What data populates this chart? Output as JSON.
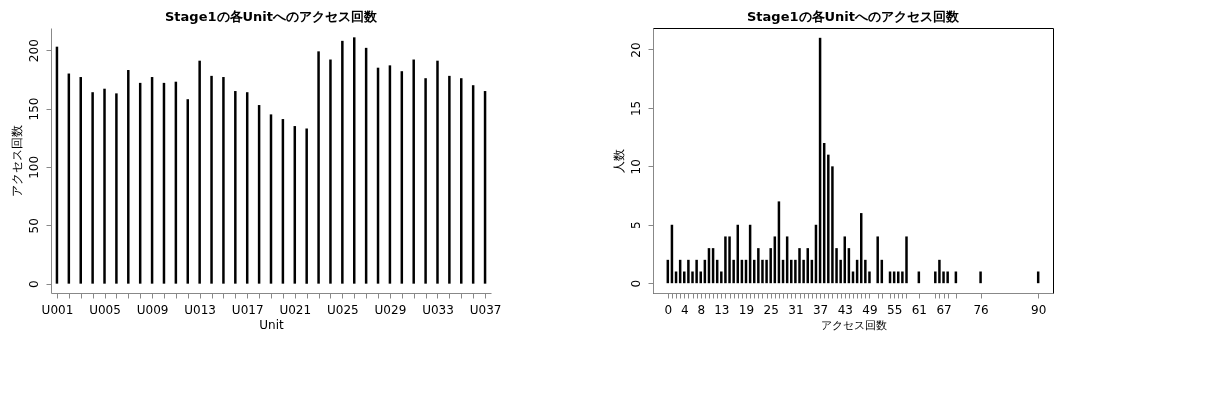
{
  "chart_data": [
    {
      "type": "bar",
      "title": "Stage1の各Unitへのアクセス回数",
      "xlabel": "Unit",
      "ylabel": "アクセス回数",
      "categories": [
        "U001",
        null,
        null,
        null,
        "U005",
        null,
        null,
        null,
        "U009",
        null,
        null,
        null,
        "U013",
        null,
        null,
        null,
        "U017",
        null,
        null,
        null,
        "U021",
        null,
        null,
        null,
        "U025",
        null,
        null,
        null,
        "U029",
        null,
        null,
        null,
        "U033",
        null,
        null,
        null,
        "U037"
      ],
      "values": [
        203,
        180,
        177,
        164,
        167,
        163,
        183,
        172,
        177,
        172,
        173,
        158,
        191,
        178,
        177,
        165,
        164,
        153,
        145,
        141,
        135,
        133,
        199,
        192,
        208,
        211,
        202,
        185,
        187,
        182,
        192,
        176,
        191,
        178,
        176,
        170,
        165
      ],
      "color": "#000000",
      "ylim": [
        -8,
        219
      ],
      "yticks": [
        0,
        50,
        100,
        150,
        200
      ],
      "grid": false
    },
    {
      "type": "bar",
      "title": "Stage1の各Unitへのアクセス回数",
      "xlabel": "アクセス回数",
      "ylabel": "人数",
      "x": [
        0,
        1,
        2,
        3,
        4,
        5,
        6,
        7,
        8,
        9,
        10,
        11,
        12,
        13,
        14,
        15,
        16,
        17,
        18,
        19,
        20,
        21,
        22,
        23,
        24,
        25,
        26,
        27,
        28,
        29,
        30,
        31,
        32,
        33,
        34,
        35,
        36,
        37,
        38,
        39,
        40,
        41,
        42,
        43,
        44,
        45,
        46,
        47,
        48,
        49,
        51,
        52,
        54,
        55,
        56,
        57,
        58,
        61,
        65,
        66,
        67,
        68,
        70,
        76,
        90
      ],
      "values": [
        2,
        5,
        1,
        2,
        1,
        2,
        1,
        2,
        1,
        2,
        3,
        3,
        2,
        1,
        4,
        4,
        2,
        5,
        2,
        2,
        5,
        2,
        3,
        2,
        2,
        3,
        4,
        7,
        2,
        4,
        2,
        2,
        3,
        2,
        3,
        2,
        5,
        21,
        12,
        11,
        10,
        3,
        2,
        4,
        3,
        1,
        2,
        6,
        2,
        1,
        4,
        2,
        1,
        1,
        1,
        1,
        4,
        1,
        1,
        2,
        1,
        1,
        1,
        1,
        1
      ],
      "color": "#000000",
      "xlim": [
        -3.6,
        93.6
      ],
      "ylim": [
        -0.84,
        21.84
      ],
      "yticks": [
        0,
        5,
        10,
        15,
        20
      ],
      "xticks": [
        0,
        {
          "value": 1,
          "label": null
        },
        {
          "value": 2,
          "label": null
        },
        {
          "value": 3,
          "label": null
        },
        4,
        {
          "value": 5,
          "label": null
        },
        {
          "value": 6,
          "label": null
        },
        {
          "value": 7,
          "label": null
        },
        8,
        {
          "value": 9,
          "label": null
        },
        {
          "value": 10,
          "label": null
        },
        {
          "value": 11,
          "label": null
        },
        {
          "value": 12,
          "label": null
        },
        13,
        {
          "value": 14,
          "label": null
        },
        {
          "value": 15,
          "label": null
        },
        {
          "value": 16,
          "label": null
        },
        {
          "value": 17,
          "label": null
        },
        {
          "value": 18,
          "label": null
        },
        19,
        {
          "value": 20,
          "label": null
        },
        {
          "value": 21,
          "label": null
        },
        {
          "value": 22,
          "label": null
        },
        {
          "value": 23,
          "label": null
        },
        {
          "value": 24,
          "label": null
        },
        25,
        {
          "value": 26,
          "label": null
        },
        {
          "value": 27,
          "label": null
        },
        {
          "value": 28,
          "label": null
        },
        {
          "value": 29,
          "label": null
        },
        {
          "value": 30,
          "label": null
        },
        31,
        {
          "value": 32,
          "label": null
        },
        {
          "value": 33,
          "label": null
        },
        {
          "value": 34,
          "label": null
        },
        {
          "value": 35,
          "label": null
        },
        {
          "value": 36,
          "label": null
        },
        37,
        {
          "value": 38,
          "label": null
        },
        {
          "value": 39,
          "label": null
        },
        {
          "value": 40,
          "label": null
        },
        {
          "value": 41,
          "label": null
        },
        {
          "value": 42,
          "label": null
        },
        43,
        {
          "value": 44,
          "label": null
        },
        {
          "value": 45,
          "label": null
        },
        {
          "value": 46,
          "label": null
        },
        {
          "value": 47,
          "label": null
        },
        {
          "value": 48,
          "label": null
        },
        49,
        {
          "value": 51,
          "label": null
        },
        {
          "value": 52,
          "label": null
        },
        {
          "value": 54,
          "label": null
        },
        55,
        {
          "value": 56,
          "label": null
        },
        {
          "value": 57,
          "label": null
        },
        {
          "value": 58,
          "label": null
        },
        61,
        {
          "value": 65,
          "label": null
        },
        {
          "value": 66,
          "label": null
        },
        67,
        {
          "value": 68,
          "label": null
        },
        {
          "value": 70,
          "label": null
        },
        76,
        90
      ],
      "grid": false
    }
  ]
}
